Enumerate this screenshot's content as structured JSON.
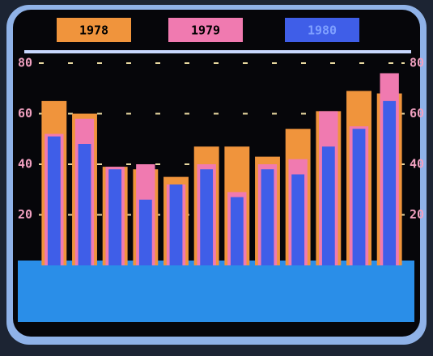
{
  "chart_data": {
    "type": "bar",
    "categories": [
      null,
      null,
      null,
      null,
      null,
      null,
      null,
      null,
      null,
      null,
      null,
      null
    ],
    "series": [
      {
        "name": "1978",
        "color": "#f0943c",
        "values": [
          65,
          60,
          39,
          38,
          35,
          47,
          47,
          43,
          54,
          61,
          69,
          68
        ]
      },
      {
        "name": "1979",
        "color": "#f07ab0",
        "values": [
          52,
          58,
          39,
          40,
          32,
          40,
          29,
          40,
          42,
          61,
          55,
          76
        ]
      },
      {
        "name": "1980",
        "color": "#3f5ee8",
        "values": [
          51,
          48,
          38,
          26,
          32,
          38,
          27,
          38,
          36,
          47,
          54,
          65
        ]
      }
    ],
    "ylim": [
      0,
      80
    ],
    "yticks": [
      20,
      40,
      60,
      80
    ],
    "y2lim": [
      0,
      80
    ],
    "y2ticks": [
      20,
      40,
      60,
      80
    ],
    "grid": true
  }
}
